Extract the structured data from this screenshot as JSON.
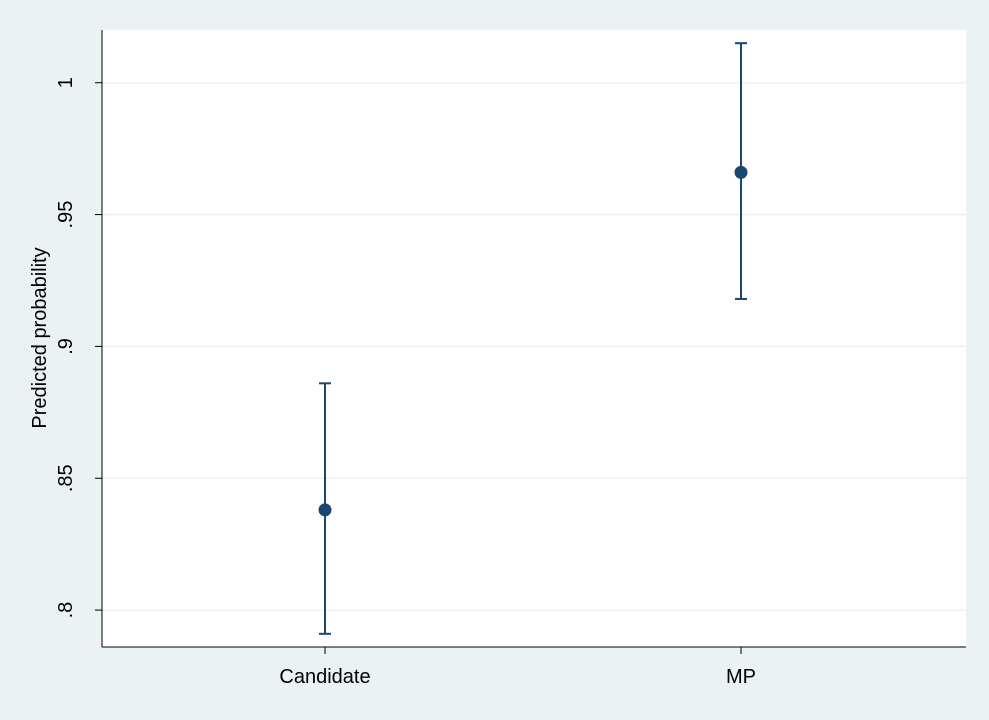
{
  "chart_data": {
    "type": "scatter",
    "title": "",
    "xlabel": "",
    "ylabel": "Predicted probability",
    "categories": [
      "Candidate",
      "MP"
    ],
    "points": [
      {
        "category": "Candidate",
        "estimate": 0.838,
        "ci_low": 0.791,
        "ci_high": 0.886
      },
      {
        "category": "MP",
        "estimate": 0.966,
        "ci_low": 0.918,
        "ci_high": 1.015
      }
    ],
    "yticks": [
      0.8,
      0.85,
      0.9,
      0.95,
      1
    ],
    "ytick_labels": [
      ".8",
      ".85",
      ".9",
      ".95",
      "1"
    ],
    "ylim": [
      0.786,
      1.02
    ],
    "grid": "horizontal",
    "legend": "none",
    "colors": {
      "background": "#eaf2f3",
      "plot_background": "#ffffff",
      "grid": "#eaf2f3",
      "marker": "#1a476f",
      "axis": "#000000"
    }
  }
}
